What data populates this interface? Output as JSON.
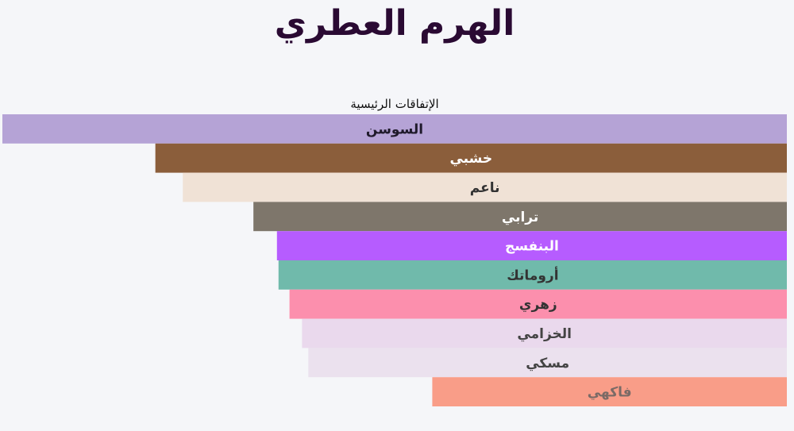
{
  "chart_data": {
    "type": "bar",
    "orientation": "horizontal",
    "title": "الهرم العطري",
    "subtitle": "الإتفاقات الرئيسية",
    "xlim": [
      0,
      100
    ],
    "bars": [
      {
        "label": "السوسن",
        "value": 100,
        "color": "#b5a3d6",
        "text_color": "#1f1a2b"
      },
      {
        "label": "خشبي",
        "value": 80.5,
        "color": "#8b5e3b",
        "text_color": "#ffffff"
      },
      {
        "label": "ناعم",
        "value": 77,
        "color": "#f0e2d6",
        "text_color": "#333333"
      },
      {
        "label": "ترابي",
        "value": 68,
        "color": "#7e766b",
        "text_color": "#ffffff"
      },
      {
        "label": "البنفسج",
        "value": 65,
        "color": "#b65cff",
        "text_color": "#ffffff"
      },
      {
        "label": "أروماتك",
        "value": 64.8,
        "color": "#70baab",
        "text_color": "#333333"
      },
      {
        "label": "زهري",
        "value": 63.4,
        "color": "#fc8fad",
        "text_color": "#333333"
      },
      {
        "label": "الخزامي",
        "value": 61.8,
        "color": "#ead9ed",
        "text_color": "#444444"
      },
      {
        "label": "مسكي",
        "value": 61,
        "color": "#ebe1ee",
        "text_color": "#444444"
      },
      {
        "label": "فاكهي",
        "value": 45.2,
        "color": "#f99d88",
        "text_color": "#7a6a66"
      }
    ]
  }
}
